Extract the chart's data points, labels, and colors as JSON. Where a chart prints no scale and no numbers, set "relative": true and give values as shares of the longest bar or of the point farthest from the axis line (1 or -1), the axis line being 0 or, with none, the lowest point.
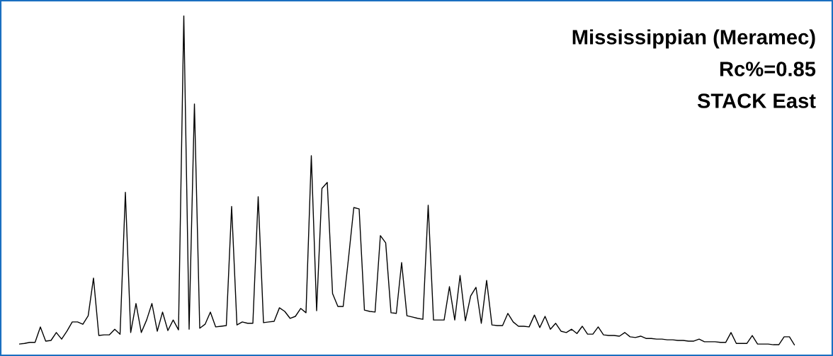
{
  "chart_data": {
    "type": "line",
    "relative": true,
    "title": "Mississippian (Meramec)",
    "annotations": [
      "Rc%=0.85",
      "STACK East"
    ],
    "categories": [
      null,
      null,
      null,
      null,
      null,
      null,
      null,
      null,
      null,
      null,
      null,
      null,
      null,
      null,
      null,
      null,
      null,
      null,
      null,
      null,
      null,
      null,
      null,
      null,
      null,
      null,
      null,
      null,
      null,
      null,
      null,
      null,
      null,
      null,
      null,
      null,
      null,
      null,
      null,
      null,
      null,
      null,
      null,
      null,
      null,
      null,
      null,
      null,
      null,
      null,
      null,
      null,
      null,
      null,
      null,
      null,
      null,
      null,
      null,
      null,
      null,
      null,
      null,
      null,
      null,
      null,
      null,
      null,
      null,
      null,
      null,
      null,
      null,
      null,
      null,
      null,
      null,
      null,
      null,
      null,
      null,
      null,
      null,
      null,
      null,
      null,
      null,
      null,
      null,
      null,
      null,
      null,
      null,
      null,
      null,
      null,
      null,
      null,
      null,
      null,
      null,
      null,
      null,
      null,
      null,
      null,
      null,
      null,
      null,
      null,
      null,
      null,
      null,
      null,
      null,
      null,
      null,
      null,
      null,
      null,
      null,
      null,
      null,
      null,
      null,
      null,
      null,
      null,
      null,
      null,
      null,
      null,
      null,
      null,
      null,
      null,
      null,
      null,
      null,
      null,
      null,
      null,
      null,
      null,
      null,
      null,
      null
    ],
    "series": [
      {
        "color": "#000000",
        "values": [
          0.004,
          0.006,
          0.009,
          0.009,
          0.056,
          0.013,
          0.015,
          0.039,
          0.019,
          0.043,
          0.071,
          0.071,
          0.064,
          0.09,
          0.204,
          0.03,
          0.032,
          0.032,
          0.049,
          0.034,
          0.464,
          0.039,
          0.127,
          0.039,
          0.077,
          0.127,
          0.043,
          0.101,
          0.045,
          0.077,
          0.047,
          1,
          0.049,
          0.732,
          0.052,
          0.064,
          0.101,
          0.056,
          0.058,
          0.06,
          0.421,
          0.062,
          0.071,
          0.067,
          0.067,
          0.451,
          0.069,
          0.071,
          0.073,
          0.114,
          0.103,
          0.082,
          0.088,
          0.112,
          0.099,
          0.575,
          0.105,
          0.476,
          0.494,
          0.157,
          0.118,
          0.118,
          0.264,
          0.418,
          0.414,
          0.107,
          0.103,
          0.101,
          0.333,
          0.311,
          0.099,
          0.097,
          0.251,
          0.09,
          0.086,
          0.082,
          0.079,
          0.425,
          0.077,
          0.077,
          0.077,
          0.178,
          0.077,
          0.212,
          0.075,
          0.15,
          0.176,
          0.067,
          0.197,
          0.062,
          0.06,
          0.06,
          0.097,
          0.071,
          0.058,
          0.058,
          0.056,
          0.092,
          0.054,
          0.088,
          0.049,
          0.067,
          0.043,
          0.039,
          0.049,
          0.036,
          0.058,
          0.034,
          0.034,
          0.056,
          0.032,
          0.03,
          0.03,
          0.028,
          0.039,
          0.026,
          0.024,
          0.028,
          0.021,
          0.021,
          0.019,
          0.019,
          0.017,
          0.017,
          0.015,
          0.015,
          0.013,
          0.013,
          0.019,
          0.011,
          0.011,
          0.011,
          0.009,
          0.009,
          0.039,
          0.006,
          0.006,
          0.006,
          0.03,
          0.004,
          0.004,
          0.004,
          0.002,
          0.002,
          0.026,
          0.026,
          0
        ]
      }
    ]
  }
}
